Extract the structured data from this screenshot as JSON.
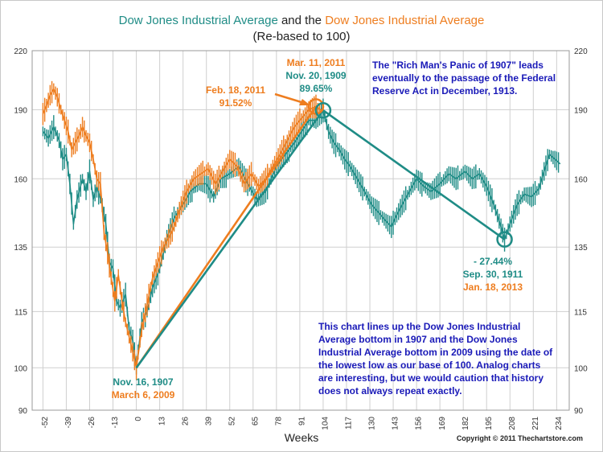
{
  "title": {
    "part1": "Dow Jones Industrial Average",
    "connector": " and the ",
    "part2": "Dow Jones Industrial Average",
    "subtitle": "(Re-based to 100)"
  },
  "colors": {
    "series_1907": "#1f8c86",
    "series_2009": "#ee7d1f",
    "note_text": "#1a1ab8",
    "grid": "#cfcfcf"
  },
  "annotations": {
    "peak_2011": [
      "Mar. 11, 2011"
    ],
    "peak_1909": [
      "Nov. 20, 1909",
      "89.65%"
    ],
    "feb_2011": [
      "Feb. 18, 2011",
      "91.52%"
    ],
    "rich_mans_panic": [
      "The \"Rich Man's Panic of 1907\" leads",
      "eventually to the passage of the Federal",
      "Reserve Act in December, 1913."
    ],
    "decline_pct": [
      "- 27.44%",
      "Sep. 30, 1911"
    ],
    "jan_2013": [
      "Jan. 18, 2013"
    ],
    "bottom_1907": [
      "Nov. 16, 1907"
    ],
    "bottom_2009": [
      "March 6, 2009"
    ],
    "explanation": [
      "This chart lines up the Dow Jones Industrial",
      "Average bottom in 1907 and the Dow Jones",
      "Industrial Average bottom in 2009 using the date of",
      "the lowest low as our base of 100.  Analog charts",
      "are interesting, but we would caution that history",
      "does not always repeat exactly."
    ]
  },
  "copyright": "Copyright © 2011 Thechartstore.com",
  "chart_data": {
    "type": "line",
    "title": "Dow Jones Industrial Average and the Dow Jones Industrial Average",
    "subtitle": "(Re-based to 100)",
    "xlabel": "Weeks",
    "ylabel": "",
    "xlim": [
      -58,
      241
    ],
    "ylim": [
      90,
      220
    ],
    "x_ticks": [
      -52,
      -39,
      -26,
      -13,
      0,
      13,
      26,
      39,
      52,
      65,
      78,
      91,
      104,
      117,
      130,
      143,
      156,
      169,
      182,
      195,
      208,
      221,
      234
    ],
    "y_ticks": [
      90,
      100,
      115,
      135,
      160,
      190,
      220
    ],
    "y_scale": "log",
    "grid": true,
    "series": [
      {
        "name": "Dow Jones Industrial Average",
        "color": "#1f8c86",
        "points": [
          [
            -52,
            180
          ],
          [
            -49,
            177
          ],
          [
            -46,
            182
          ],
          [
            -43,
            176
          ],
          [
            -41,
            168
          ],
          [
            -39,
            170
          ],
          [
            -37,
            158
          ],
          [
            -35,
            143
          ],
          [
            -33,
            152
          ],
          [
            -30,
            160
          ],
          [
            -28,
            155
          ],
          [
            -26,
            163
          ],
          [
            -24,
            152
          ],
          [
            -22,
            157
          ],
          [
            -19,
            150
          ],
          [
            -17,
            143
          ],
          [
            -15,
            130
          ],
          [
            -13,
            128
          ],
          [
            -11,
            118
          ],
          [
            -9,
            116
          ],
          [
            -6,
            120
          ],
          [
            -4,
            110
          ],
          [
            -2,
            107
          ],
          [
            0,
            100
          ],
          [
            3,
            112
          ],
          [
            6,
            115
          ],
          [
            9,
            122
          ],
          [
            13,
            128
          ],
          [
            17,
            138
          ],
          [
            21,
            145
          ],
          [
            26,
            150
          ],
          [
            30,
            155
          ],
          [
            35,
            158
          ],
          [
            39,
            158
          ],
          [
            43,
            153
          ],
          [
            47,
            160
          ],
          [
            52,
            162
          ],
          [
            57,
            165
          ],
          [
            62,
            158
          ],
          [
            67,
            152
          ],
          [
            72,
            155
          ],
          [
            78,
            165
          ],
          [
            83,
            170
          ],
          [
            88,
            175
          ],
          [
            92,
            180
          ],
          [
            96,
            185
          ],
          [
            100,
            185
          ],
          [
            104,
            189.65
          ],
          [
            107,
            180
          ],
          [
            110,
            175
          ],
          [
            113,
            172
          ],
          [
            116,
            168
          ],
          [
            119,
            165
          ],
          [
            123,
            160
          ],
          [
            127,
            155
          ],
          [
            131,
            150
          ],
          [
            135,
            147
          ],
          [
            139,
            144
          ],
          [
            142,
            142
          ],
          [
            144,
            145
          ],
          [
            148,
            150
          ],
          [
            152,
            155
          ],
          [
            156,
            160
          ],
          [
            160,
            157
          ],
          [
            164,
            155
          ],
          [
            169,
            158
          ],
          [
            174,
            162
          ],
          [
            178,
            160
          ],
          [
            183,
            163
          ],
          [
            187,
            160
          ],
          [
            191,
            162
          ],
          [
            195,
            157
          ],
          [
            199,
            150
          ],
          [
            203,
            142
          ],
          [
            205,
            137.6
          ],
          [
            208,
            143
          ],
          [
            212,
            150
          ],
          [
            216,
            154
          ],
          [
            220,
            153
          ],
          [
            224,
            156
          ],
          [
            227,
            163
          ],
          [
            230,
            170
          ],
          [
            233,
            168
          ],
          [
            236,
            166
          ]
        ]
      },
      {
        "name": "Dow Jones Industrial Average",
        "color": "#ee7d1f",
        "points": [
          [
            -52,
            188
          ],
          [
            -50,
            192
          ],
          [
            -48,
            197
          ],
          [
            -46,
            200
          ],
          [
            -44,
            196
          ],
          [
            -42,
            190
          ],
          [
            -40,
            185
          ],
          [
            -38,
            180
          ],
          [
            -36,
            172
          ],
          [
            -34,
            175
          ],
          [
            -32,
            178
          ],
          [
            -30,
            182
          ],
          [
            -28,
            178
          ],
          [
            -26,
            175
          ],
          [
            -24,
            168
          ],
          [
            -22,
            160
          ],
          [
            -20,
            158
          ],
          [
            -18,
            140
          ],
          [
            -16,
            133
          ],
          [
            -14,
            125
          ],
          [
            -12,
            118
          ],
          [
            -10,
            126
          ],
          [
            -8,
            118
          ],
          [
            -6,
            112
          ],
          [
            -3,
            106
          ],
          [
            0,
            100
          ],
          [
            3,
            110
          ],
          [
            6,
            117
          ],
          [
            9,
            125
          ],
          [
            12,
            130
          ],
          [
            15,
            135
          ],
          [
            18,
            138
          ],
          [
            21,
            142
          ],
          [
            24,
            148
          ],
          [
            28,
            155
          ],
          [
            32,
            160
          ],
          [
            36,
            162
          ],
          [
            40,
            164
          ],
          [
            44,
            158
          ],
          [
            48,
            163
          ],
          [
            52,
            168
          ],
          [
            56,
            165
          ],
          [
            60,
            158
          ],
          [
            64,
            162
          ],
          [
            68,
            157
          ],
          [
            72,
            160
          ],
          [
            76,
            165
          ],
          [
            80,
            170
          ],
          [
            84,
            176
          ],
          [
            88,
            182
          ],
          [
            92,
            186
          ],
          [
            96,
            190
          ],
          [
            100,
            191.52
          ],
          [
            103,
            189.65
          ]
        ]
      }
    ],
    "trend_lines": [
      {
        "color": "#ee7d1f",
        "from": [
          0,
          100
        ],
        "to": [
          100,
          191.52
        ]
      },
      {
        "color": "#1f8c86",
        "from": [
          0,
          100
        ],
        "to": [
          104,
          189.65
        ]
      },
      {
        "color": "#1f8c86",
        "from": [
          104,
          189.65
        ],
        "to": [
          205,
          137.6
        ]
      }
    ],
    "markers": [
      {
        "color": "#ee7d1f",
        "at": [
          100,
          191.52
        ]
      },
      {
        "color": "#1f8c86",
        "at": [
          104,
          189.65
        ]
      },
      {
        "color": "#1f8c86",
        "at": [
          205,
          137.6
        ]
      }
    ]
  }
}
